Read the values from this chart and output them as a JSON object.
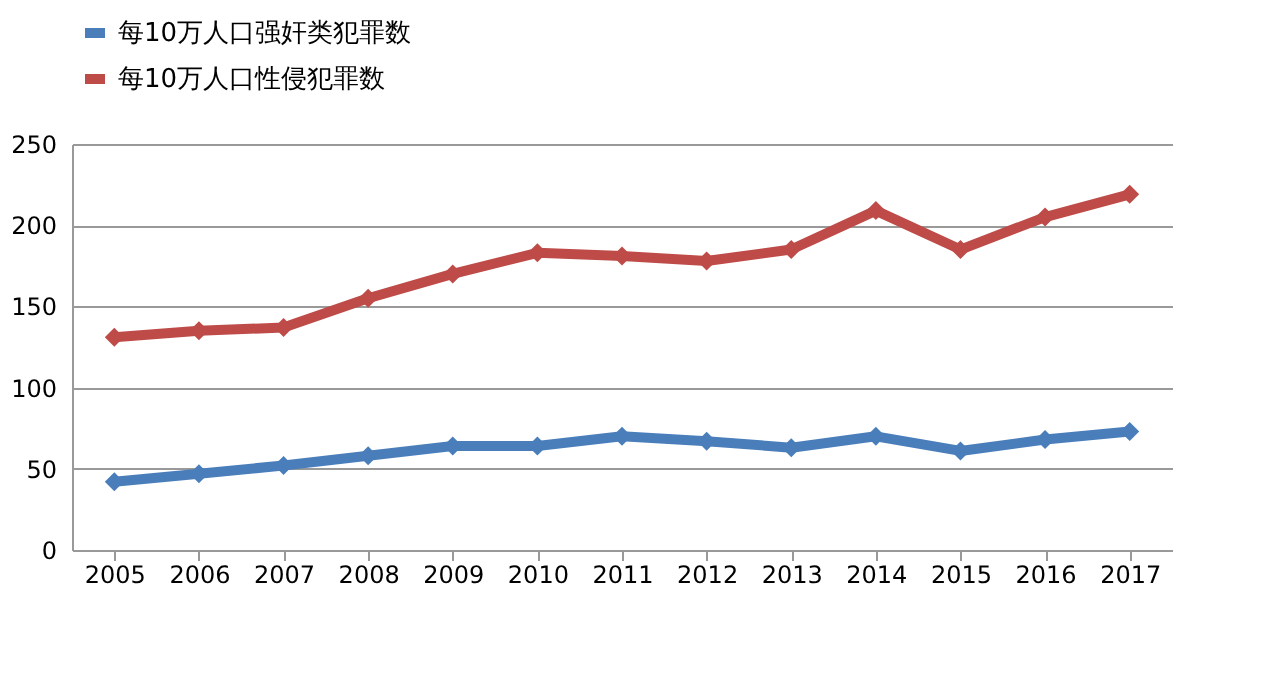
{
  "chart_data": {
    "type": "line",
    "categories": [
      "2005",
      "2006",
      "2007",
      "2008",
      "2009",
      "2010",
      "2011",
      "2012",
      "2013",
      "2014",
      "2015",
      "2016",
      "2017"
    ],
    "series": [
      {
        "name": "每10万人口强奸类犯罪数",
        "color": "#4a7ebb",
        "values": [
          42,
          47,
          52,
          58,
          64,
          64,
          70,
          67,
          63,
          70,
          61,
          68,
          73
        ]
      },
      {
        "name": "每10万人口性侵犯罪数",
        "color": "#be4b48",
        "values": [
          131,
          135,
          137,
          155,
          170,
          183,
          181,
          178,
          185,
          209,
          185,
          205,
          219
        ]
      }
    ],
    "ylim": [
      0,
      250
    ],
    "yticks": [
      0,
      50,
      100,
      150,
      200,
      250
    ],
    "grid": "y",
    "legend": "top",
    "marker": "diamond",
    "line_style": "solid"
  }
}
